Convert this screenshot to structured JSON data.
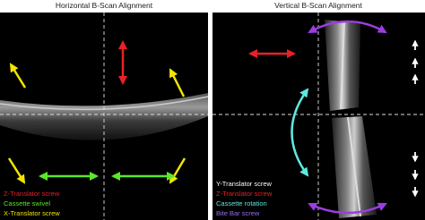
{
  "panels": [
    {
      "title": "Horizontal B-Scan Alignment",
      "legend": [
        "Z-Translator screw",
        "Cassette swivel",
        "X-Translator screw"
      ]
    },
    {
      "title": "Vertical B-Scan Alignment",
      "legend": [
        "Y-Translator screw",
        "Z-Translator screw",
        "Cassette rotation",
        "Bite Bar screw"
      ]
    }
  ]
}
